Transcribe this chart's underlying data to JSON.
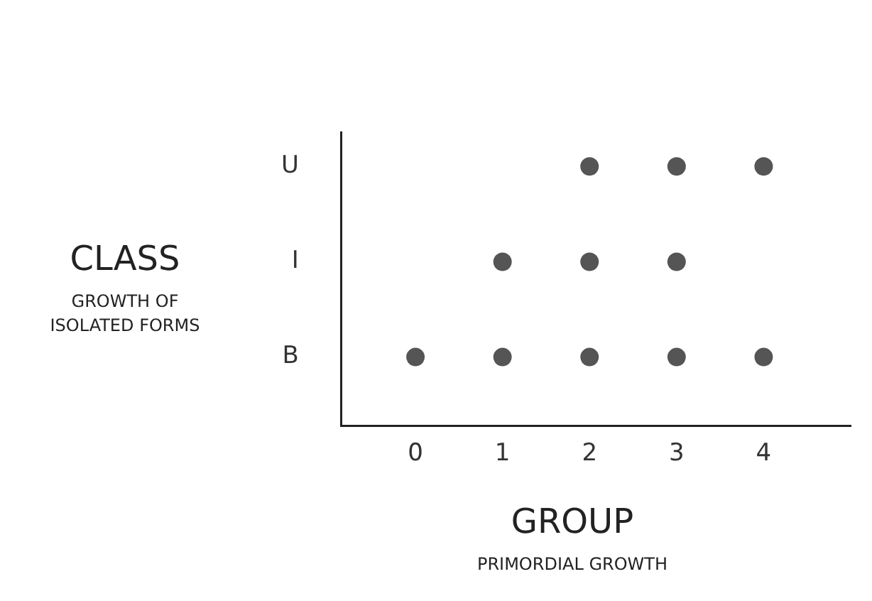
{
  "chart_data": {
    "type": "scatter",
    "orientation": "horizontal",
    "xlabel": "GROUP\nPRIMORDIAL GROWTH",
    "ylabel": "CLASS\nGROWTH OF ISOLATED FORMS",
    "categories": [
      "U",
      "I",
      "B"
    ],
    "series": [
      {
        "color": "#555555",
        "values": [
          2,
          1,
          0
        ]
      },
      {
        "color": "#555555",
        "values": [
          3,
          2,
          1
        ]
      },
      {
        "color": "#555555",
        "values": [
          4,
          3,
          2
        ]
      },
      {
        "color": "#555555",
        "values": [
          null,
          null,
          3
        ]
      },
      {
        "color": "#555555",
        "values": [
          null,
          null,
          4
        ]
      }
    ],
    "xlim": [
      -0.85,
      5
    ],
    "xticks": [
      0,
      1,
      2,
      3,
      4
    ],
    "grid": false,
    "legend": false,
    "marker": "circle"
  }
}
